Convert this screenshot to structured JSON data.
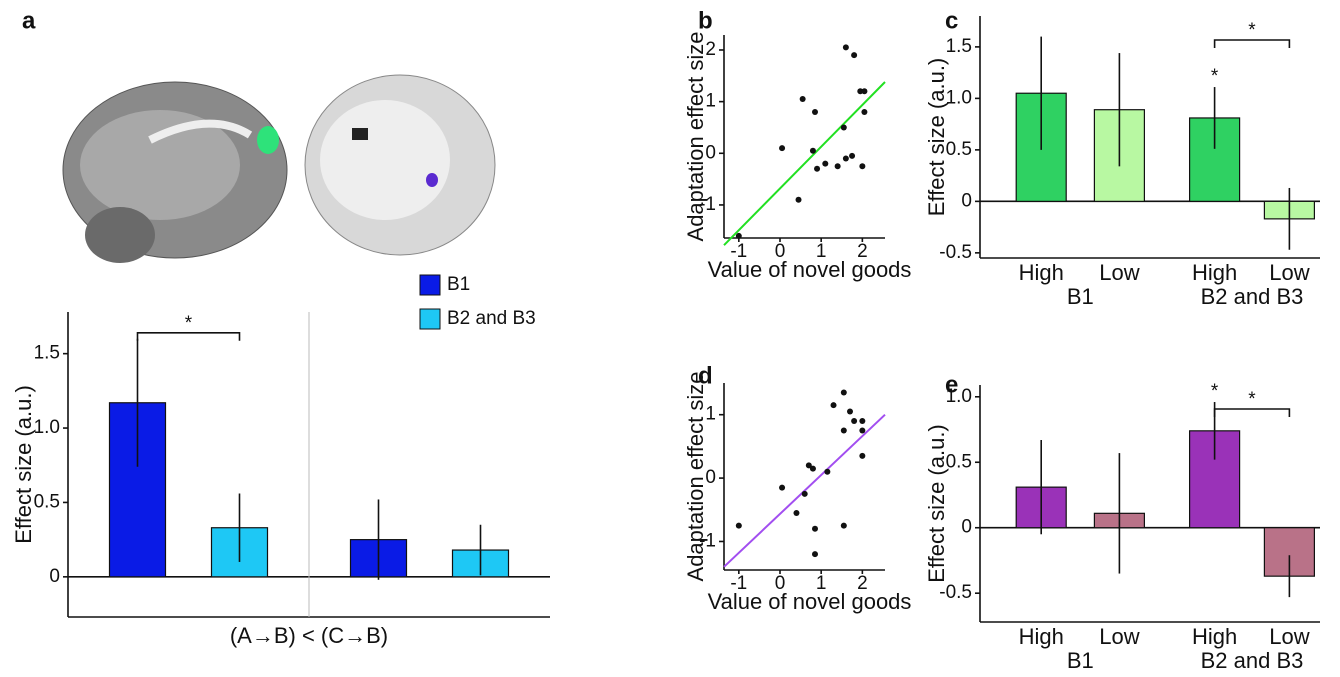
{
  "chart_data": [
    {
      "panel": "a",
      "type": "bar",
      "ylabel": "Effect size (a.u.)",
      "xlabel": "(A→B) < (C→B)",
      "categories": [
        null,
        null
      ],
      "series": [
        {
          "name": "B1",
          "color": "#0a1be6",
          "values": [
            1.17,
            0.25
          ],
          "errors": [
            0.43,
            0.27
          ]
        },
        {
          "name": "B2 and B3",
          "color": "#1ec8f5",
          "values": [
            0.33,
            0.18
          ],
          "errors": [
            0.23,
            0.17
          ]
        }
      ],
      "ylim": [
        -0.27,
        1.78
      ],
      "yticks": [
        0,
        0.5,
        {
          "value": 1,
          "label": "1.0"
        },
        1.5
      ],
      "annotations": [
        "*"
      ]
    },
    {
      "panel": "b",
      "type": "scatter",
      "ylabel": "Adaptation effect size",
      "xlabel": "Value of novel goods",
      "x": [
        -1.0,
        0.05,
        0.45,
        0.55,
        0.8,
        0.85,
        0.9,
        1.1,
        1.4,
        1.55,
        1.6,
        1.6,
        1.75,
        1.8,
        1.95,
        2.05,
        2.05,
        2.0
      ],
      "y": [
        -1.6,
        0.1,
        -0.9,
        1.05,
        0.05,
        0.8,
        -0.3,
        -0.2,
        -0.25,
        0.5,
        2.05,
        -0.1,
        -0.05,
        1.9,
        1.2,
        1.2,
        0.8,
        -0.25
      ],
      "fit_x": [
        -1.36,
        2.55
      ],
      "fit_y": [
        -1.78,
        1.38
      ],
      "line_color": "#22e022",
      "xlim": [
        -1.36,
        2.55
      ],
      "ylim": [
        -1.64,
        2.29
      ],
      "xticks": [
        -1,
        0,
        1,
        2
      ],
      "yticks": [
        -1,
        0,
        1,
        2
      ]
    },
    {
      "panel": "c",
      "type": "bar",
      "ylabel": "Effect size (a.u.)",
      "categories": [
        "High",
        "Low",
        "High",
        "Low"
      ],
      "groups": [
        "B1",
        "B2 and B3"
      ],
      "colors": [
        "#2fd162",
        "#b8f8a2",
        "#2fd162",
        "#b8f8a2"
      ],
      "values": [
        1.05,
        0.89,
        0.81,
        -0.17
      ],
      "errors": [
        0.55,
        0.55,
        0.3,
        0.3
      ],
      "ylim": [
        -0.55,
        1.8
      ],
      "yticks": [
        -0.5,
        0,
        0.5,
        {
          "value": 1,
          "label": "1.0"
        },
        1.5
      ],
      "annotations": [
        "*",
        "*"
      ]
    },
    {
      "panel": "d",
      "type": "scatter",
      "ylabel": "Adaptation effect size",
      "xlabel": "Value of novel goods",
      "x": [
        -1.0,
        0.05,
        0.4,
        0.6,
        0.7,
        0.8,
        0.85,
        0.85,
        1.15,
        1.3,
        1.55,
        1.55,
        1.55,
        1.7,
        1.8,
        2.0,
        2.0,
        2.0
      ],
      "y": [
        -0.75,
        -0.15,
        -0.55,
        -0.25,
        0.2,
        0.15,
        -0.8,
        -1.2,
        0.1,
        1.15,
        1.35,
        0.75,
        -0.75,
        1.05,
        0.9,
        0.9,
        0.75,
        0.35
      ],
      "fit_x": [
        -1.36,
        2.55
      ],
      "fit_y": [
        -1.4,
        1.0
      ],
      "line_color": "#a24ef0",
      "xlim": [
        -1.36,
        2.55
      ],
      "ylim": [
        -1.45,
        1.5
      ],
      "xticks": [
        -1,
        0,
        1,
        2
      ],
      "yticks": [
        -1,
        0,
        1
      ]
    },
    {
      "panel": "e",
      "type": "bar",
      "ylabel": "Effect size (a.u.)",
      "categories": [
        "High",
        "Low",
        "High",
        "Low"
      ],
      "groups": [
        "B1",
        "B2 and B3"
      ],
      "colors": [
        "#9a32b8",
        "#b97288",
        "#9a32b8",
        "#b97288"
      ],
      "values": [
        0.31,
        0.11,
        0.74,
        -0.37
      ],
      "errors": [
        0.36,
        0.46,
        0.22,
        0.16
      ],
      "ylim": [
        -0.72,
        1.09
      ],
      "yticks": [
        -0.5,
        0,
        0.5,
        {
          "value": 1,
          "label": "1.0"
        }
      ],
      "annotations": [
        "*",
        "*"
      ]
    }
  ]
}
